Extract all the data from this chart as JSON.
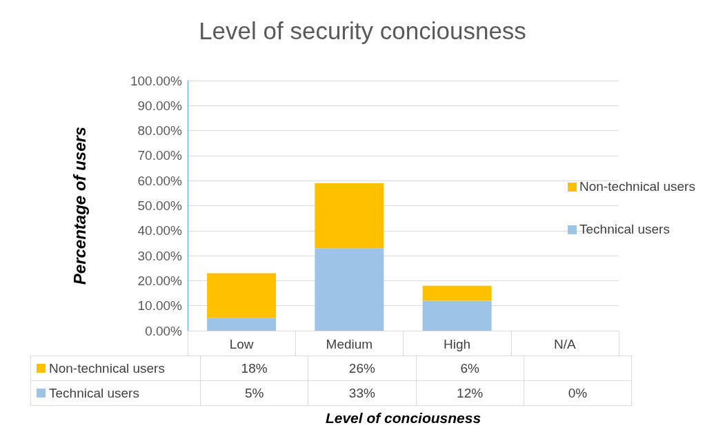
{
  "chart_data": {
    "type": "bar",
    "title": "Level of security conciousness",
    "xlabel": "Level of conciousness",
    "ylabel": "Percentage of users",
    "categories": [
      "Low",
      "Medium",
      "High",
      "N/A"
    ],
    "stacked": true,
    "series": [
      {
        "name": "Technical users",
        "color": "#9dc3e6",
        "values": [
          5,
          33,
          12,
          0
        ],
        "value_labels": [
          "5%",
          "33%",
          "12%",
          "0%"
        ]
      },
      {
        "name": "Non-technical users",
        "color": "#ffc000",
        "values": [
          18,
          26,
          6,
          null
        ],
        "value_labels": [
          "18%",
          "26%",
          "6%",
          null
        ]
      }
    ],
    "ylim": [
      0,
      100
    ],
    "yticks": [
      {
        "value": 0,
        "label": "0.00%"
      },
      {
        "value": 10,
        "label": "10.00%"
      },
      {
        "value": 20,
        "label": "20.00%"
      },
      {
        "value": 30,
        "label": "30.00%"
      },
      {
        "value": 40,
        "label": "40.00%"
      },
      {
        "value": 50,
        "label": "50.00%"
      },
      {
        "value": 60,
        "label": "60.00%"
      },
      {
        "value": 70,
        "label": "70.00%"
      },
      {
        "value": 80,
        "label": "80.00%"
      },
      {
        "value": 90,
        "label": "90.00%"
      },
      {
        "value": 100,
        "label": "100.00%"
      }
    ],
    "grid": "y",
    "legend": "right"
  }
}
